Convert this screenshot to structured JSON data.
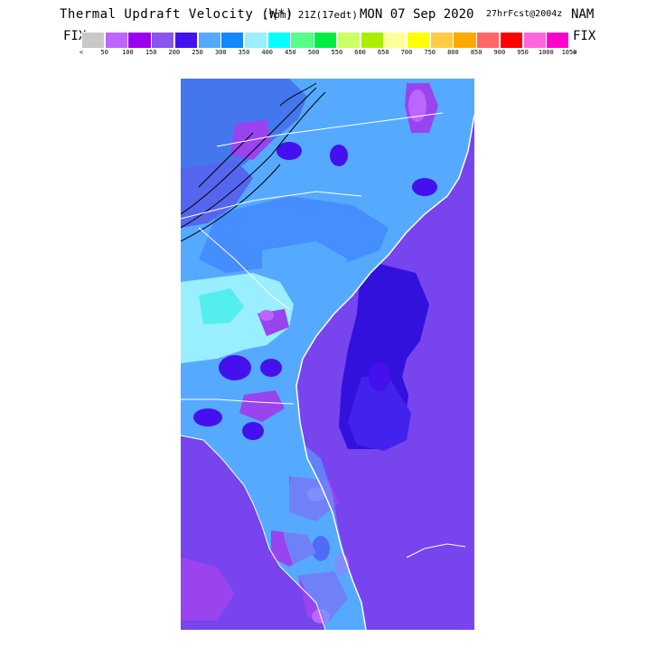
{
  "header": {
    "title": "Thermal Updraft Velocity (W*)",
    "units": "[fpm]",
    "valid_time": "21Z(17edt)",
    "date": "MON 07 Sep 2020",
    "forecast_info": "27hrFcst@2004z",
    "model": "NAM"
  },
  "legend": {
    "left_label": "FIX",
    "right_label": "FIX",
    "under_marker": "<",
    "over_marker": ">",
    "colors": [
      "#c8c8c8",
      "#bb66ff",
      "#9900ee",
      "#8855ee",
      "#4411ee",
      "#55aaff",
      "#1188ff",
      "#99eeff",
      "#00ffff",
      "#55ff88",
      "#00ee44",
      "#ccff66",
      "#aaee00",
      "#ffff99",
      "#ffff00",
      "#ffcc44",
      "#ffaa00",
      "#ff6666",
      "#ff0000",
      "#ff66dd",
      "#ff00cc"
    ],
    "ticks": [
      "50",
      "100",
      "150",
      "200",
      "250",
      "300",
      "350",
      "400",
      "450",
      "500",
      "550",
      "600",
      "650",
      "700",
      "750",
      "800",
      "850",
      "900",
      "950",
      "1000",
      "1050"
    ]
  },
  "map": {
    "region": "Southeast United States",
    "colors": {
      "ocean": "#7744ee",
      "coastal_water": "#3311dd",
      "land_low": "#55aaff",
      "land_mid": "#4488ff",
      "land_high": "#99eeff",
      "cells": "#9944ee",
      "hotspots": "#bb66ff",
      "boundaries": "#ffffff",
      "contours": "#000000"
    }
  }
}
